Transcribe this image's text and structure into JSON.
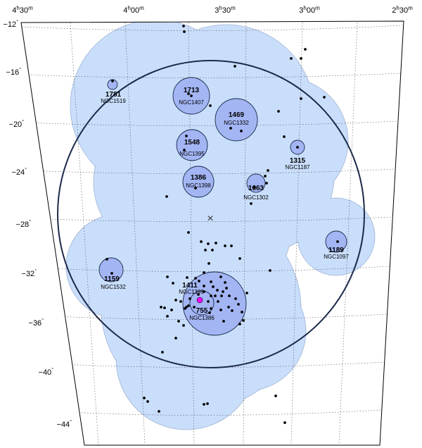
{
  "chart_data": {
    "type": "scatter",
    "projection": "sky map (RA / Dec)",
    "title": "",
    "xlabel": "",
    "ylabel": "",
    "ra_ticks": [
      {
        "label_h": "4",
        "label_m": "30"
      },
      {
        "label_h": "4",
        "label_m": "00"
      },
      {
        "label_h": "3",
        "label_m": "30"
      },
      {
        "label_h": "3",
        "label_m": "00"
      },
      {
        "label_h": "2",
        "label_m": "30"
      }
    ],
    "dec_ticks": [
      "−12",
      "−16",
      "−20",
      "−24",
      "−28",
      "−32",
      "−36",
      "−40",
      "−44"
    ],
    "degree_symbol": "°",
    "hour_sup": "h",
    "min_sup": "m",
    "grid": true,
    "colors": {
      "envelope": "#c9defb",
      "group_fill": "#a3b5f3",
      "circle_stroke": "#1b2a4a",
      "points": "#000000",
      "center_marker": "#ff00ff"
    },
    "center_marker": "×",
    "groups": [
      {
        "id": "1781",
        "ngc": "NGC1519"
      },
      {
        "id": "1713",
        "ngc": "NGC1407"
      },
      {
        "id": "1469",
        "ngc": "NGC1332"
      },
      {
        "id": "1548",
        "ngc": "NGC1395"
      },
      {
        "id": "1315",
        "ngc": "NGC1187"
      },
      {
        "id": "1386",
        "ngc": "NGC1398"
      },
      {
        "id": "1663",
        "ngc": "NGC1302"
      },
      {
        "id": "1189",
        "ngc": "NGC1097"
      },
      {
        "id": "1159",
        "ngc": "NGC1532"
      },
      {
        "id": "1411",
        "ngc": "NGC1399"
      },
      {
        "id": "755",
        "ngc": "NGC1386"
      }
    ]
  }
}
